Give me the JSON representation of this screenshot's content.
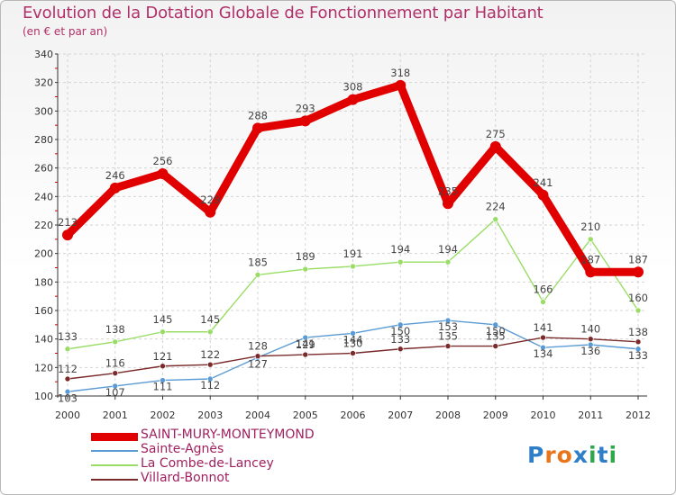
{
  "header": {
    "title": "Evolution de la Dotation Globale de Fonctionnement par Habitant",
    "subtitle": "(en € et par an)"
  },
  "logo": {
    "text": "Proxiti",
    "letters": [
      "P",
      "r",
      "o",
      "x",
      "i",
      "t",
      "i"
    ],
    "colors": [
      "#2f7fc8",
      "#e8751a",
      "#e8751a",
      "#2f7fc8",
      "#2fa84a",
      "#2f7fc8",
      "#2fa84a"
    ]
  },
  "chart_data": {
    "type": "line",
    "title": "Evolution de la Dotation Globale de Fonctionnement par Habitant",
    "subtitle": "(en € et par an)",
    "xlabel": "",
    "ylabel": "",
    "x": [
      "2000",
      "2001",
      "2002",
      "2003",
      "2004",
      "2005",
      "2006",
      "2007",
      "2008",
      "2009",
      "2010",
      "2011",
      "2012"
    ],
    "ylim": [
      100,
      340
    ],
    "yticks": [
      100,
      120,
      140,
      160,
      180,
      200,
      220,
      240,
      260,
      280,
      300,
      320,
      340
    ],
    "grid": true,
    "legend_position": "bottom-left",
    "series": [
      {
        "name": "SAINT-MURY-MONTEYMOND",
        "color": "#e00000",
        "width": "thick",
        "values": [
          213,
          246,
          256,
          229,
          288,
          293,
          308,
          318,
          235,
          275,
          241,
          187,
          187
        ],
        "labels": [
          "213",
          "246",
          "256",
          "229",
          "288",
          "293",
          "308",
          "318",
          "235",
          "275",
          "241",
          "187",
          "187"
        ]
      },
      {
        "name": "Sainte-Agnès",
        "color": "#5b9bd5",
        "width": "thin",
        "values": [
          103,
          107,
          111,
          112,
          127,
          141,
          144,
          150,
          153,
          150,
          134,
          136,
          133
        ],
        "labels": [
          "103",
          "107",
          "111",
          "112",
          "127",
          "141",
          "144",
          "150",
          "153",
          "150",
          "134",
          "136",
          "133"
        ]
      },
      {
        "name": "La Combe-de-Lancey",
        "color": "#99dd66",
        "width": "thin",
        "values": [
          133,
          138,
          145,
          145,
          185,
          189,
          191,
          194,
          194,
          224,
          166,
          210,
          160
        ],
        "labels": [
          "133",
          "138",
          "145",
          "145",
          "185",
          "189",
          "191",
          "194",
          "194",
          "224",
          "166",
          "210",
          "160"
        ]
      },
      {
        "name": "Villard-Bonnot",
        "color": "#7a2a2a",
        "width": "thin",
        "values": [
          112,
          116,
          121,
          122,
          128,
          129,
          130,
          133,
          135,
          135,
          141,
          140,
          138
        ],
        "labels": [
          "112",
          "116",
          "121",
          "122",
          "128",
          "129",
          "130",
          "133",
          "135",
          "135",
          "141",
          "140",
          "138"
        ]
      }
    ]
  }
}
